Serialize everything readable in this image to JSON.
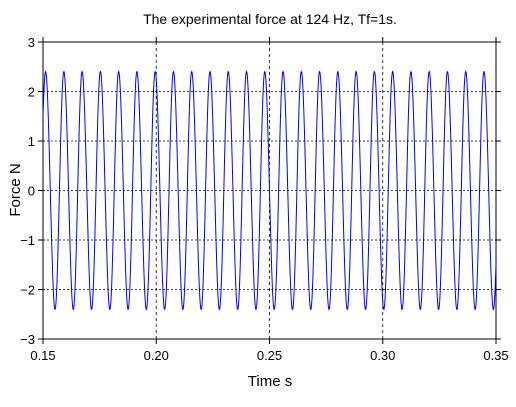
{
  "chart_data": {
    "type": "line",
    "title": "The experimental force at 124 Hz, Tf=1s.",
    "xlabel": "Time s",
    "ylabel": "Force N",
    "xlim": [
      0.15,
      0.35
    ],
    "ylim": [
      -3,
      3
    ],
    "xticks": [
      0.15,
      0.2,
      0.25,
      0.3,
      0.35
    ],
    "xtick_labels": [
      "0.15",
      "0.20",
      "0.25",
      "0.30",
      "0.35"
    ],
    "yticks": [
      -3,
      -2,
      -1,
      0,
      1,
      2,
      3
    ],
    "ytick_labels": [
      "−3",
      "−2",
      "−1",
      "0",
      "1",
      "2",
      "3"
    ],
    "grid": true,
    "series": [
      {
        "color": "#0000ff",
        "frequency_hz": 124,
        "amplitude": 2.4,
        "phase_cycles": 0.5
      }
    ]
  }
}
